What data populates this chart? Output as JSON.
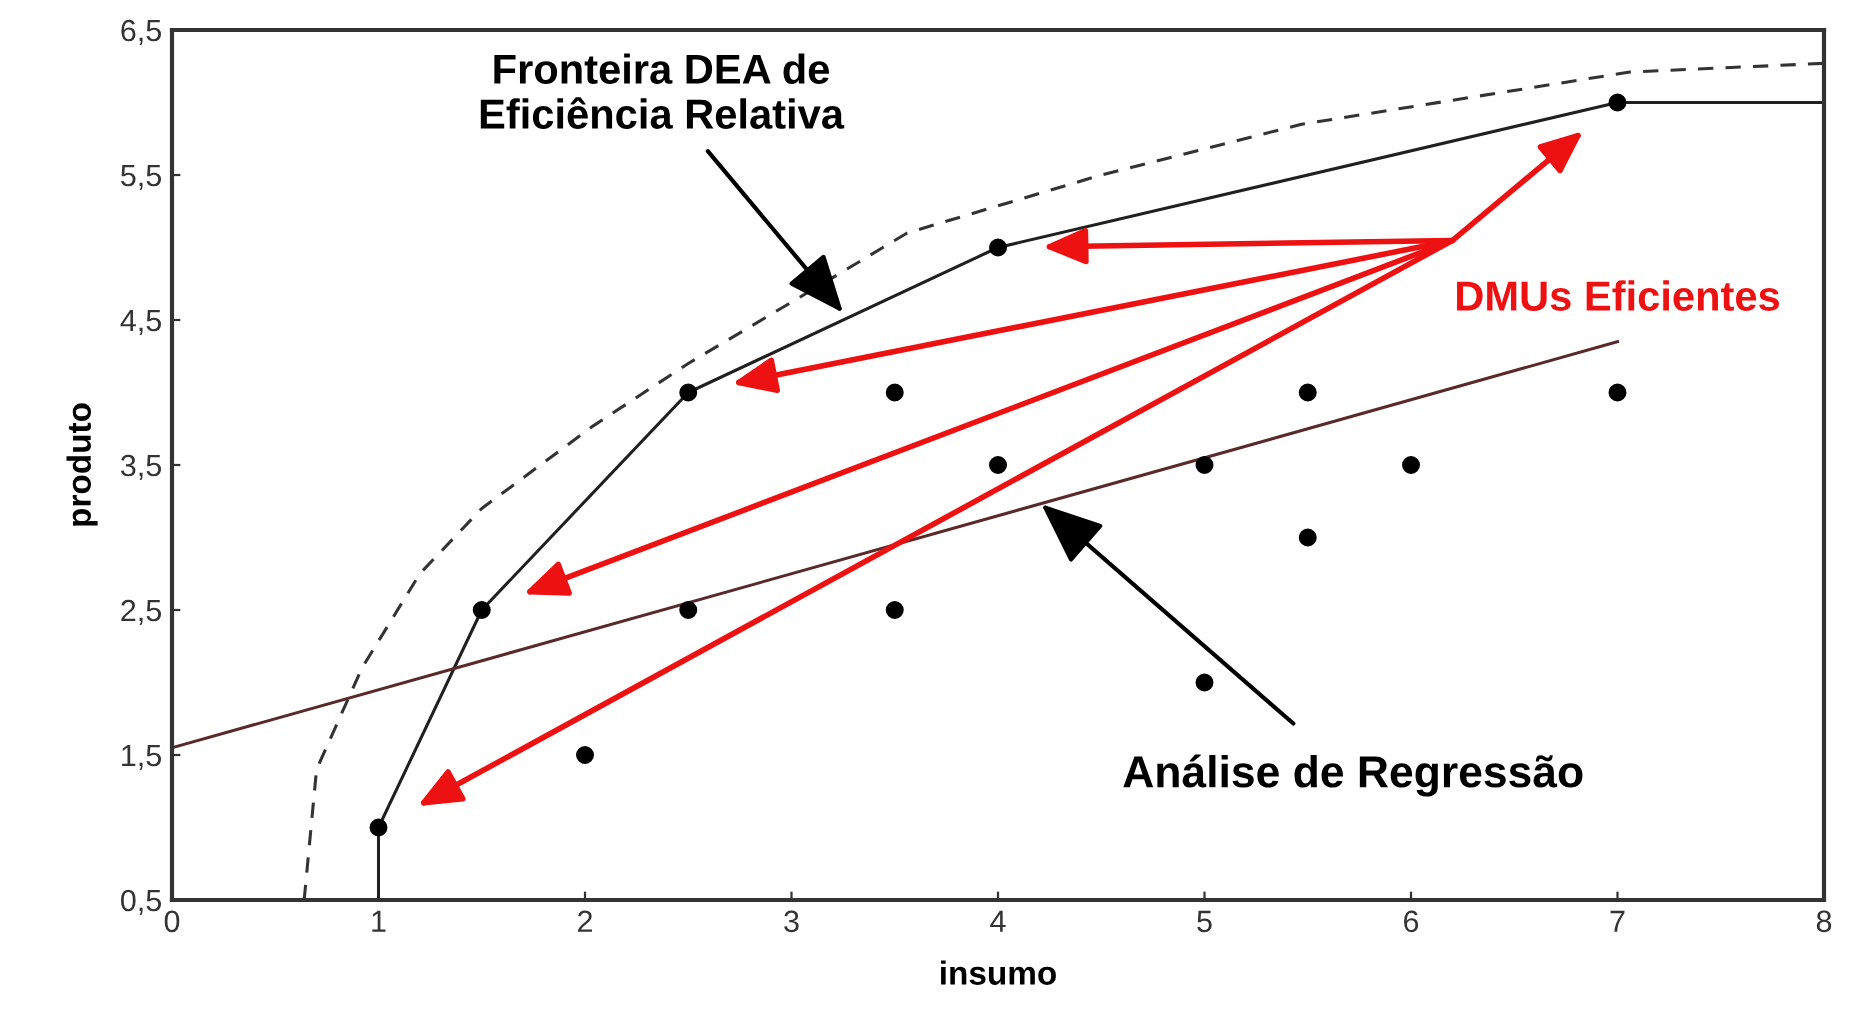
{
  "chart_data": {
    "type": "scatter",
    "xlabel": "insumo",
    "ylabel": "produto",
    "xlim": [
      0,
      8
    ],
    "ylim": [
      0.5,
      6.5
    ],
    "xticks": [
      0,
      1,
      2,
      3,
      4,
      5,
      6,
      7,
      8
    ],
    "yticks": [
      {
        "value": 0.5,
        "label": "0,5"
      },
      {
        "value": 1.5,
        "label": "1,5"
      },
      {
        "value": 2.5,
        "label": "2,5"
      },
      {
        "value": 3.5,
        "label": "3,5"
      },
      {
        "value": 4.5,
        "label": "4,5"
      },
      {
        "value": 5.5,
        "label": "5,5"
      },
      {
        "value": 6.5,
        "label": "6,5"
      }
    ],
    "grid": false,
    "legend": false,
    "series": [
      {
        "type": "line",
        "color": "#333333",
        "line_style": "dashed",
        "marker": "none",
        "x": [
          0.64,
          0.7,
          0.92,
          1.2,
          1.5,
          2.04,
          2.5,
          3.15,
          3.56,
          4.5,
          5.47,
          7.06,
          8
        ],
        "values": [
          0.5,
          1.4,
          2.1,
          2.75,
          3.2,
          3.77,
          4.2,
          4.75,
          5.1,
          5.5,
          5.85,
          6.21,
          6.27
        ]
      },
      {
        "type": "line",
        "color": "#202020",
        "line_style": "solid",
        "marker": "none",
        "x": [
          1,
          1,
          1.5,
          2.5,
          4,
          7,
          8
        ],
        "values": [
          0.5,
          1,
          2.5,
          4,
          5,
          6,
          6
        ]
      },
      {
        "type": "line",
        "color": "#5a2a2a",
        "line_style": "solid",
        "marker": "none",
        "x": [
          0,
          7
        ],
        "values": [
          1.55,
          4.35
        ]
      },
      {
        "color": "#000000",
        "marker": "circle",
        "x": [
          1,
          1.5,
          2.5,
          4,
          7
        ],
        "values": [
          1,
          2.5,
          4,
          5,
          6
        ]
      },
      {
        "color": "#000000",
        "marker": "circle",
        "x": [
          2,
          2.5,
          3.5,
          3.5,
          4,
          5,
          5,
          5.5,
          5.5,
          6,
          7
        ],
        "values": [
          1.5,
          2.5,
          4,
          2.5,
          3.5,
          3.5,
          2,
          4,
          3,
          3.5,
          4
        ]
      }
    ],
    "annotations": [
      {
        "text": "Fronteira DEA de\nEficiência Relativa",
        "x": 3.25,
        "y": 4.55
      },
      {
        "text": "DMUs Eficientes"
      },
      {
        "text": "Análise de Regressão",
        "x": 4.21,
        "y": 3.23
      }
    ]
  }
}
